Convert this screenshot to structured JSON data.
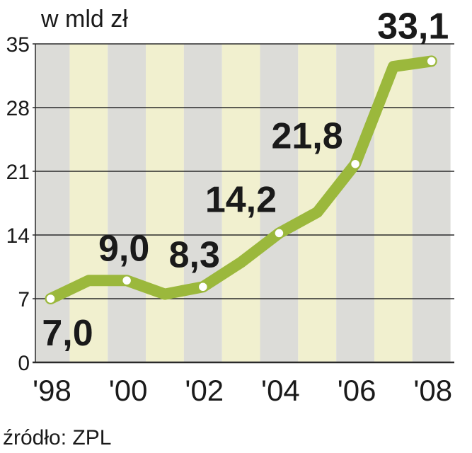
{
  "chart_data": {
    "type": "line",
    "unit_label": "w mld zł",
    "x": [
      1998,
      1999,
      2000,
      2001,
      2002,
      2003,
      2004,
      2005,
      2006,
      2007,
      2008
    ],
    "values": [
      7.0,
      9.0,
      9.0,
      7.5,
      8.3,
      11.0,
      14.2,
      16.5,
      21.8,
      32.5,
      33.1
    ],
    "x_tick_labels": [
      {
        "x": 1998,
        "label": "'98"
      },
      {
        "x": 2000,
        "label": "'00"
      },
      {
        "x": 2002,
        "label": "'02"
      },
      {
        "x": 2004,
        "label": "'04"
      },
      {
        "x": 2006,
        "label": "'06"
      },
      {
        "x": 2008,
        "label": "'08"
      }
    ],
    "y_ticks": [
      0,
      7,
      14,
      21,
      28,
      35
    ],
    "y_tick_labels": [
      "0",
      "7",
      "14",
      "21",
      "28",
      "35"
    ],
    "ylim": [
      0,
      35
    ],
    "grid": true,
    "data_labels": [
      {
        "x": 1998,
        "label": "7,0"
      },
      {
        "x": 2000,
        "label": "9,0"
      },
      {
        "x": 2002,
        "label": "8,3"
      },
      {
        "x": 2004,
        "label": "14,2"
      },
      {
        "x": 2006,
        "label": "21,8"
      },
      {
        "x": 2008,
        "label": "33,1"
      }
    ],
    "marker_years": [
      1998,
      2000,
      2002,
      2004,
      2006,
      2008
    ],
    "source": "źródło: ZPL"
  },
  "colors": {
    "line": "#9bb83c",
    "marker_fill": "#ffffff",
    "stripe_gray": "#dcdcd8",
    "stripe_yellow": "#f1f0cf",
    "grid": "#2a2a2a",
    "text": "#1a1a1a"
  }
}
